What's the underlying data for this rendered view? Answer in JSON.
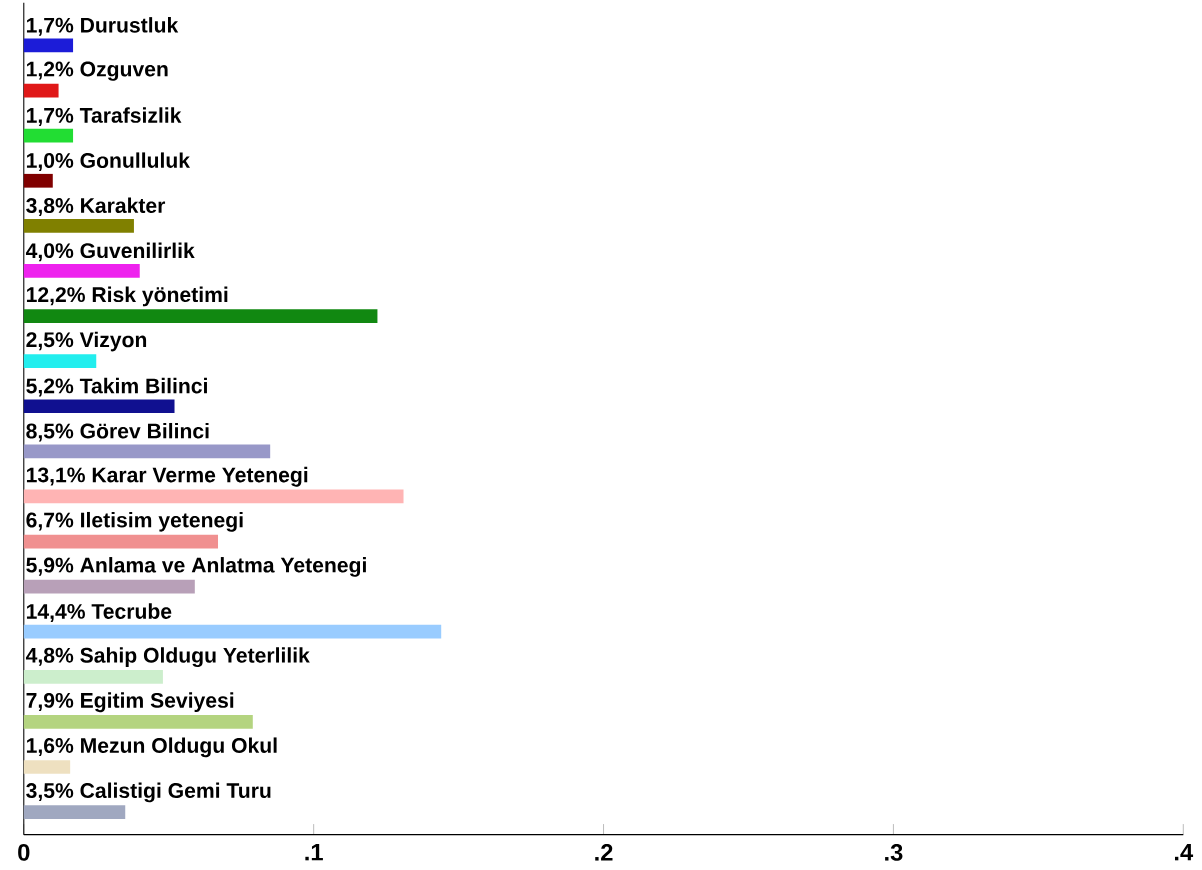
{
  "chart_data": {
    "type": "bar",
    "orientation": "horizontal",
    "categories": [
      "1,7% Durustluk",
      "1,2% Ozguven",
      "1,7% Tarafsizlik",
      "1,0% Gonulluluk",
      "3,8% Karakter",
      "4,0% Guvenilirlik",
      "12,2% Risk yönetimi",
      "2,5% Vizyon",
      "5,2% Takim Bilinci",
      "8,5% Görev Bilinci",
      "13,1% Karar Verme Yetenegi",
      "6,7% Iletisim yetenegi",
      "5,9% Anlama ve Anlatma Yetenegi",
      "14,4% Tecrube",
      "4,8% Sahip Oldugu Yeterlilik",
      "7,9% Egitim Seviyesi",
      "1,6% Mezun Oldugu Okul",
      "3,5% Calistigi Gemi Turu"
    ],
    "values": [
      0.017,
      0.012,
      0.017,
      0.01,
      0.038,
      0.04,
      0.122,
      0.025,
      0.052,
      0.085,
      0.131,
      0.067,
      0.059,
      0.144,
      0.048,
      0.079,
      0.016,
      0.035
    ],
    "colors": [
      "#1c1cd8",
      "#e01818",
      "#22dd33",
      "#800000",
      "#808000",
      "#ee22ee",
      "#118811",
      "#22eeee",
      "#101090",
      "#9898c8",
      "#ffb4b4",
      "#f09090",
      "#b8a0b8",
      "#99ccff",
      "#cceecc",
      "#b4d480",
      "#eee0c0",
      "#a0a8c0"
    ],
    "xlim": [
      0,
      0.4
    ],
    "xticks": [
      {
        "value": 0,
        "label": "0"
      },
      {
        "value": 0.1,
        "label": ".1"
      },
      {
        "value": 0.2,
        "label": ".2"
      },
      {
        "value": 0.3,
        "label": ".3"
      },
      {
        "value": 0.4,
        "label": ".4"
      }
    ]
  }
}
